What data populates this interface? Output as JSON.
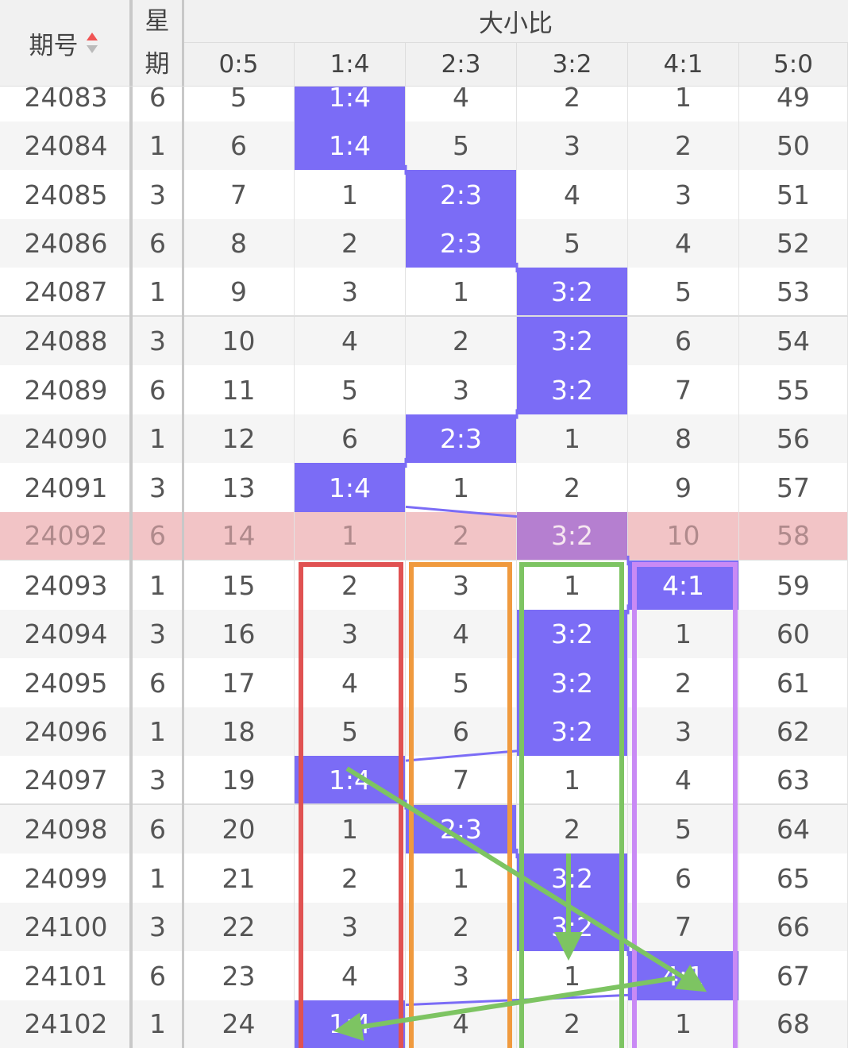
{
  "header": {
    "issue": "期号",
    "weekday": "星期",
    "group": "大小比",
    "columns": [
      "0:5",
      "1:4",
      "2:3",
      "3:2",
      "4:1",
      "5:0"
    ]
  },
  "rows": [
    {
      "cells": [
        "24083",
        "6",
        "5",
        "1:4",
        "4",
        "2",
        "1",
        "49"
      ]
    },
    {
      "cells": [
        "24084",
        "1",
        "6",
        "1:4",
        "5",
        "3",
        "2",
        "50"
      ]
    },
    {
      "cells": [
        "24085",
        "3",
        "7",
        "1",
        "2:3",
        "4",
        "3",
        "51"
      ]
    },
    {
      "cells": [
        "24086",
        "6",
        "8",
        "2",
        "2:3",
        "5",
        "4",
        "52"
      ]
    },
    {
      "cells": [
        "24087",
        "1",
        "9",
        "3",
        "1",
        "3:2",
        "5",
        "53"
      ]
    },
    {
      "cells": [
        "24088",
        "3",
        "10",
        "4",
        "2",
        "3:2",
        "6",
        "54"
      ]
    },
    {
      "cells": [
        "24089",
        "6",
        "11",
        "5",
        "3",
        "3:2",
        "7",
        "55"
      ]
    },
    {
      "cells": [
        "24090",
        "1",
        "12",
        "6",
        "2:3",
        "1",
        "8",
        "56"
      ]
    },
    {
      "cells": [
        "24091",
        "3",
        "13",
        "1:4",
        "1",
        "2",
        "9",
        "57"
      ]
    },
    {
      "cells": [
        "24092",
        "6",
        "14",
        "1",
        "2",
        "3:2",
        "10",
        "58"
      ],
      "highlight": true
    },
    {
      "cells": [
        "24093",
        "1",
        "15",
        "2",
        "3",
        "1",
        "4:1",
        "59"
      ]
    },
    {
      "cells": [
        "24094",
        "3",
        "16",
        "3",
        "4",
        "3:2",
        "1",
        "60"
      ]
    },
    {
      "cells": [
        "24095",
        "6",
        "17",
        "4",
        "5",
        "3:2",
        "2",
        "61"
      ]
    },
    {
      "cells": [
        "24096",
        "1",
        "18",
        "5",
        "6",
        "3:2",
        "3",
        "62"
      ]
    },
    {
      "cells": [
        "24097",
        "3",
        "19",
        "1:4",
        "7",
        "1",
        "4",
        "63"
      ]
    },
    {
      "cells": [
        "24098",
        "6",
        "20",
        "1",
        "2:3",
        "2",
        "5",
        "64"
      ]
    },
    {
      "cells": [
        "24099",
        "1",
        "21",
        "2",
        "1",
        "3:2",
        "6",
        "65"
      ]
    },
    {
      "cells": [
        "24100",
        "3",
        "22",
        "3",
        "2",
        "3:2",
        "7",
        "66"
      ]
    },
    {
      "cells": [
        "24101",
        "6",
        "23",
        "4",
        "3",
        "1",
        "4:1",
        "67"
      ]
    },
    {
      "cells": [
        "24102",
        "1",
        "24",
        "1:4",
        "4",
        "2",
        "1",
        "68"
      ]
    }
  ]
}
